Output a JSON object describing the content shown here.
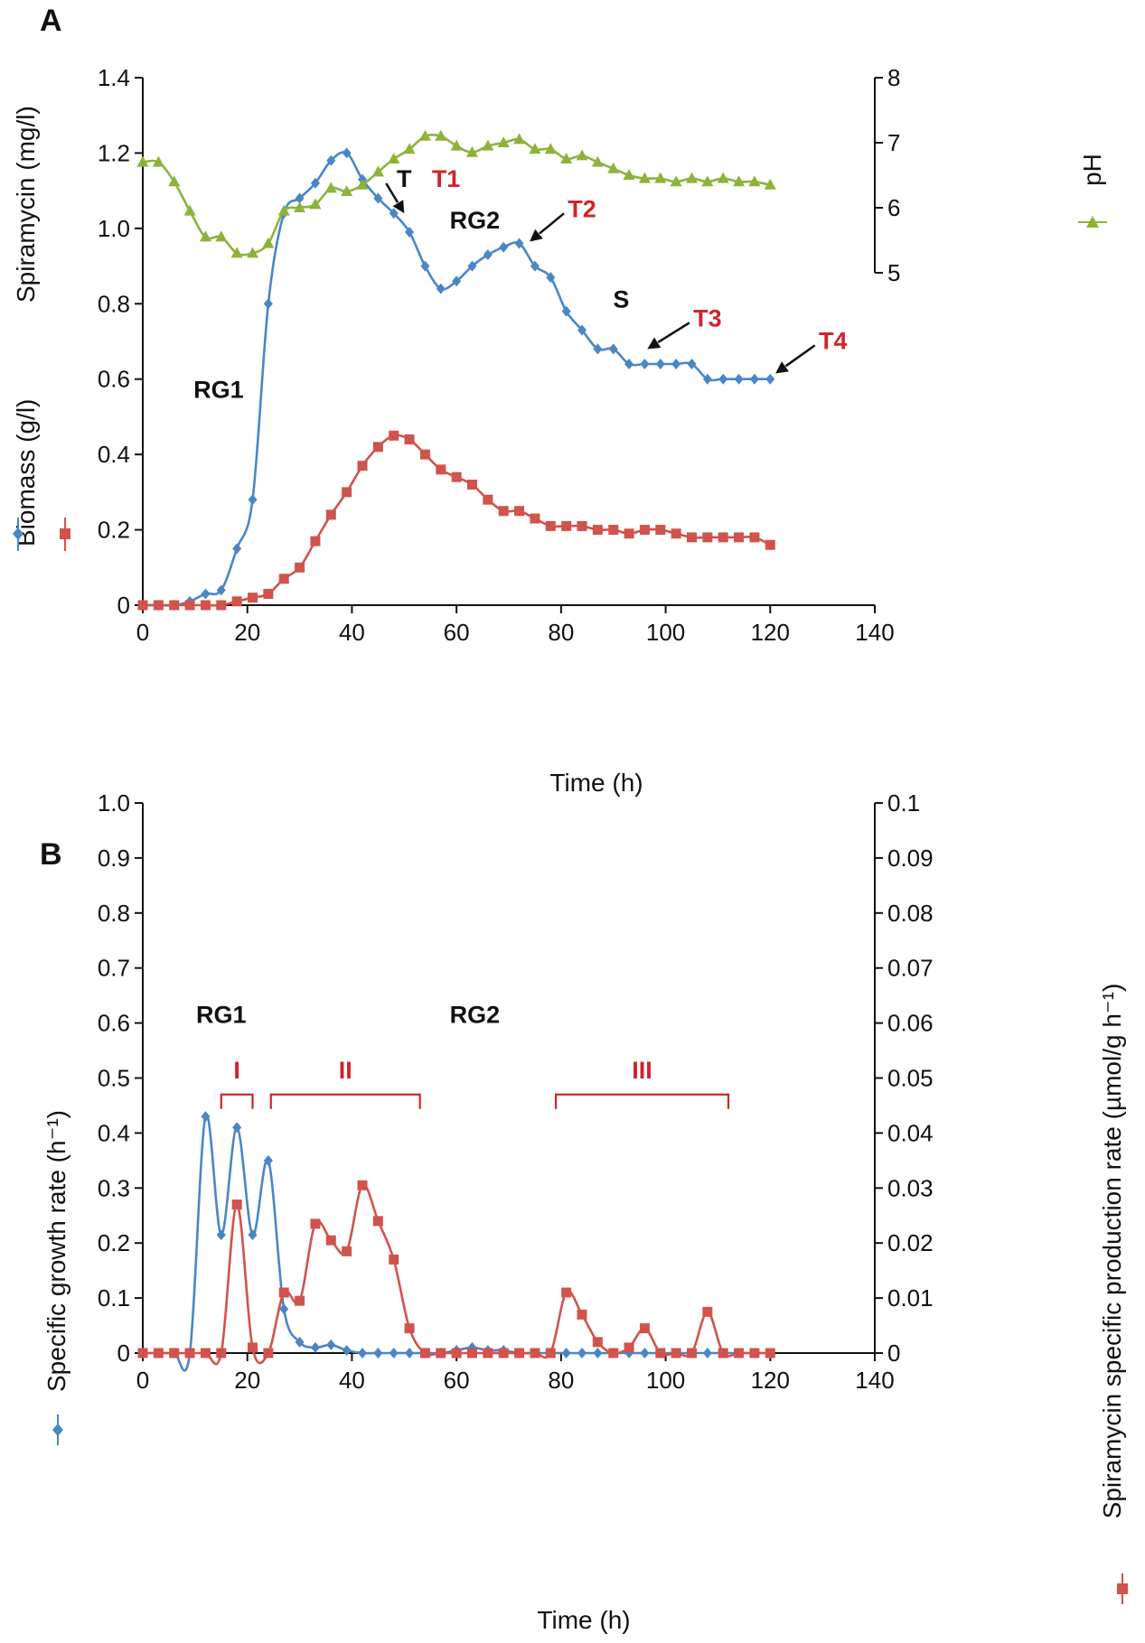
{
  "panels": [
    {
      "label": "A",
      "xlabel": "Time (h)",
      "xlim": [
        0,
        140
      ],
      "xticks": [
        0,
        20,
        40,
        60,
        80,
        100,
        120,
        140
      ],
      "ylim": [
        0,
        1.4
      ],
      "yticks": [
        0,
        0.2,
        0.4,
        0.6,
        0.8,
        1.0,
        1.2,
        1.4
      ],
      "ytick_labels": [
        "0",
        "0.2",
        "0.4",
        "0.6",
        "0.8",
        "1.0",
        "1.2",
        "1.4"
      ],
      "ylabel_parts": [
        "Biomass (g/l)",
        "Spiramycin (mg/l)"
      ],
      "y2lim": [
        5,
        8
      ],
      "y2ticks": [
        5,
        6,
        7,
        8
      ],
      "y2tick_labels": [
        "5",
        "6",
        "7",
        "8"
      ],
      "y2label": "pH",
      "chart_data": {
        "type": "line",
        "title": "",
        "series": [
          {
            "name": "Biomass (g/l)",
            "axis": "left",
            "color": "#4a86c5",
            "marker": "diamond",
            "x": [
              0,
              3,
              6,
              9,
              12,
              15,
              18,
              21,
              24,
              27,
              30,
              33,
              36,
              39,
              42,
              45,
              48,
              51,
              54,
              57,
              60,
              63,
              66,
              69,
              72,
              75,
              78,
              81,
              84,
              87,
              90,
              93,
              96,
              99,
              102,
              105,
              108,
              111,
              114,
              117,
              120
            ],
            "y": [
              0,
              0,
              0,
              0.01,
              0.03,
              0.04,
              0.15,
              0.28,
              0.8,
              1.04,
              1.08,
              1.12,
              1.18,
              1.2,
              1.13,
              1.08,
              1.04,
              0.99,
              0.9,
              0.84,
              0.86,
              0.9,
              0.93,
              0.95,
              0.96,
              0.9,
              0.87,
              0.78,
              0.73,
              0.68,
              0.68,
              0.64,
              0.64,
              0.64,
              0.64,
              0.64,
              0.6,
              0.6,
              0.6,
              0.6,
              0.6
            ]
          },
          {
            "name": "Spiramycin (mg/l)",
            "axis": "left",
            "color": "#d0534c",
            "marker": "square",
            "x": [
              0,
              3,
              6,
              9,
              12,
              15,
              18,
              21,
              24,
              27,
              30,
              33,
              36,
              39,
              42,
              45,
              48,
              51,
              54,
              57,
              60,
              63,
              66,
              69,
              72,
              75,
              78,
              81,
              84,
              87,
              90,
              93,
              96,
              99,
              102,
              105,
              108,
              111,
              114,
              117,
              120
            ],
            "y": [
              0,
              0,
              0,
              0,
              0,
              0,
              0.01,
              0.02,
              0.03,
              0.07,
              0.1,
              0.17,
              0.24,
              0.3,
              0.37,
              0.42,
              0.45,
              0.44,
              0.4,
              0.36,
              0.34,
              0.32,
              0.28,
              0.25,
              0.25,
              0.23,
              0.21,
              0.21,
              0.21,
              0.2,
              0.2,
              0.19,
              0.2,
              0.2,
              0.19,
              0.18,
              0.18,
              0.18,
              0.18,
              0.18,
              0.16
            ]
          },
          {
            "name": "pH",
            "axis": "right",
            "color": "#8db33a",
            "marker": "triangle",
            "x": [
              0,
              3,
              6,
              9,
              12,
              15,
              18,
              21,
              24,
              27,
              30,
              33,
              36,
              39,
              42,
              45,
              48,
              51,
              54,
              57,
              60,
              63,
              66,
              69,
              72,
              75,
              78,
              81,
              84,
              87,
              90,
              93,
              96,
              99,
              102,
              105,
              108,
              111,
              114,
              117,
              120
            ],
            "y": [
              6.7,
              6.7,
              6.4,
              5.95,
              5.55,
              5.55,
              5.3,
              5.3,
              5.45,
              5.95,
              6.0,
              6.05,
              6.3,
              6.25,
              6.35,
              6.55,
              6.75,
              6.9,
              7.1,
              7.1,
              6.95,
              6.85,
              6.95,
              7.0,
              7.05,
              6.9,
              6.9,
              6.75,
              6.8,
              6.7,
              6.6,
              6.5,
              6.45,
              6.45,
              6.4,
              6.45,
              6.4,
              6.45,
              6.4,
              6.4,
              6.35
            ]
          }
        ],
        "annotations": [
          {
            "text": "RG1",
            "x": 14.5,
            "y": 0.55,
            "color": "black"
          },
          {
            "text": "T",
            "x": 50,
            "y": 1.11,
            "color": "black",
            "arrow_to": [
              50,
              1.04
            ]
          },
          {
            "text": "T1",
            "x": 58,
            "y": 1.11,
            "color": "red"
          },
          {
            "text": "RG2",
            "x": 63.5,
            "y": 1.0,
            "color": "black"
          },
          {
            "text": "T2",
            "x": 84,
            "y": 1.03,
            "color": "red",
            "arrow_to": [
              74,
              0.965
            ]
          },
          {
            "text": "S",
            "x": 91.5,
            "y": 0.79,
            "color": "black"
          },
          {
            "text": "T3",
            "x": 108,
            "y": 0.74,
            "color": "red",
            "arrow_to": [
              96.5,
              0.68
            ]
          },
          {
            "text": "T4",
            "x": 132,
            "y": 0.68,
            "color": "red",
            "arrow_to": [
              121,
              0.615
            ]
          }
        ]
      }
    },
    {
      "label": "B",
      "xlabel": "Time (h)",
      "xlim": [
        0,
        140
      ],
      "xticks": [
        0,
        20,
        40,
        60,
        80,
        100,
        120,
        140
      ],
      "ylim": [
        0,
        1.0
      ],
      "yticks": [
        0,
        0.1,
        0.2,
        0.3,
        0.4,
        0.5,
        0.6,
        0.7,
        0.8,
        0.9,
        1.0
      ],
      "ytick_labels": [
        "0",
        "0.1",
        "0.2",
        "0.3",
        "0.4",
        "0.5",
        "0.6",
        "0.7",
        "0.8",
        "0.9",
        "1.0"
      ],
      "ylabel": "Specific growth rate (h⁻¹)",
      "y2lim": [
        0,
        0.1
      ],
      "y2ticks": [
        0,
        0.01,
        0.02,
        0.03,
        0.04,
        0.05,
        0.06,
        0.07,
        0.08,
        0.09,
        0.1
      ],
      "y2tick_labels": [
        "0",
        "0.01",
        "0.02",
        "0.03",
        "0.04",
        "0.05",
        "0.06",
        "0.07",
        "0.08",
        "0.09",
        "0.1"
      ],
      "y2label": "Spiramycin specific production rate (µmol/g h⁻¹)",
      "chart_data": {
        "type": "line",
        "title": "",
        "series": [
          {
            "name": "Specific growth rate (h-1)",
            "axis": "left",
            "color": "#4a86c5",
            "marker": "diamond",
            "x": [
              0,
              3,
              6,
              9,
              12,
              15,
              18,
              21,
              24,
              27,
              30,
              33,
              36,
              39,
              42,
              45,
              48,
              51,
              54,
              57,
              60,
              63,
              66,
              69,
              72,
              75,
              78,
              81,
              84,
              87,
              90,
              93,
              96,
              99,
              102,
              105,
              108,
              111,
              114,
              117,
              120
            ],
            "y": [
              0,
              0,
              0,
              0,
              0.43,
              0.215,
              0.41,
              0.215,
              0.35,
              0.08,
              0.02,
              0.01,
              0.015,
              0.005,
              0,
              0,
              0,
              0,
              0,
              0,
              0.005,
              0.01,
              0.005,
              0.005,
              0,
              0,
              0,
              0,
              0,
              0,
              0,
              0,
              0,
              0,
              0,
              0,
              0,
              0,
              0,
              0,
              0
            ]
          },
          {
            "name": "Spiramycin specific production rate",
            "axis": "right",
            "color": "#d0534c",
            "marker": "square",
            "x": [
              0,
              3,
              6,
              9,
              12,
              15,
              18,
              21,
              24,
              27,
              30,
              33,
              36,
              39,
              42,
              45,
              48,
              51,
              54,
              57,
              60,
              63,
              66,
              69,
              72,
              75,
              78,
              81,
              84,
              87,
              90,
              93,
              96,
              99,
              102,
              105,
              108,
              111,
              114,
              117,
              120
            ],
            "y": [
              0,
              0,
              0,
              0,
              0,
              0,
              0.027,
              0.001,
              0,
              0.011,
              0.0095,
              0.0235,
              0.0205,
              0.0185,
              0.0305,
              0.024,
              0.017,
              0.0045,
              0,
              0,
              0,
              0,
              0,
              0,
              0,
              0,
              0,
              0.011,
              0.007,
              0.002,
              0,
              0.001,
              0.0045,
              0,
              0,
              0,
              0.0075,
              0,
              0,
              0,
              0
            ]
          }
        ],
        "annotations": [
          {
            "text": "RG1",
            "x": 15,
            "y": 0.6,
            "color": "black"
          },
          {
            "text": "RG2",
            "x": 63.5,
            "y": 0.6,
            "color": "black"
          }
        ],
        "brackets": [
          {
            "label": "I",
            "x_start": 15,
            "x_end": 21,
            "y": 0.47
          },
          {
            "label": "II",
            "x_start": 24.5,
            "x_end": 53,
            "y": 0.47
          },
          {
            "label": "III",
            "x_start": 79,
            "x_end": 112,
            "y": 0.47
          }
        ]
      }
    }
  ]
}
